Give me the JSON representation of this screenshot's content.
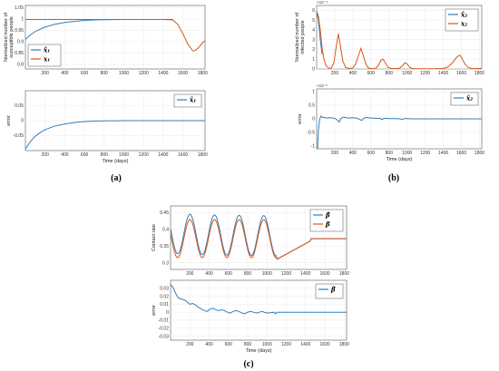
{
  "figure": {
    "panel_labels": [
      "(a)",
      "(b)",
      "(c)"
    ]
  },
  "colors": {
    "estimate": "#2f7fbf",
    "actual": "#d9541a",
    "grid": "#e6e6e6",
    "axis": "#333333"
  },
  "chart_data": [
    {
      "id": "a_top",
      "type": "line",
      "xlabel": "",
      "ylabel": "Normalized number of susceptible people",
      "xlim": [
        0,
        1825
      ],
      "ylim": [
        0.78,
        1.06
      ],
      "xticks": [
        200,
        400,
        600,
        800,
        1000,
        1200,
        1400,
        1600,
        1800
      ],
      "yticks": [
        0.8,
        0.85,
        0.9,
        0.95,
        1,
        1.05
      ],
      "ytick_labels": [
        "0.8",
        "0.85",
        "0.9",
        "0.95",
        "1",
        "1.05"
      ],
      "legend": [
        "x̂₁",
        "x₁"
      ],
      "legend_pos": "bottom-left",
      "series": [
        {
          "name": "x̂₁",
          "color": "#2f7fbf",
          "x": [
            0,
            50,
            100,
            150,
            200,
            300,
            400,
            500,
            600,
            700,
            800,
            1000,
            1200,
            1400,
            1500
          ],
          "y": [
            0.91,
            0.93,
            0.945,
            0.955,
            0.965,
            0.977,
            0.985,
            0.99,
            0.994,
            0.996,
            0.997,
            0.998,
            0.998,
            0.998,
            0.998
          ]
        },
        {
          "name": "x₁",
          "color": "#d9541a",
          "x": [
            0,
            200,
            400,
            600,
            800,
            1000,
            1200,
            1400,
            1500,
            1550,
            1600,
            1650,
            1700,
            1720,
            1750,
            1800,
            1825
          ],
          "y": [
            0.998,
            0.998,
            0.998,
            0.998,
            0.998,
            0.998,
            0.998,
            0.998,
            0.996,
            0.975,
            0.935,
            0.89,
            0.86,
            0.86,
            0.87,
            0.895,
            0.905
          ]
        }
      ]
    },
    {
      "id": "a_bottom",
      "type": "line",
      "xlabel": "Time (days)",
      "ylabel": "error",
      "xlim": [
        0,
        1825
      ],
      "ylim": [
        -0.1,
        0.1
      ],
      "xticks": [
        200,
        400,
        600,
        800,
        1000,
        1200,
        1400,
        1600,
        1800
      ],
      "yticks": [
        -0.05,
        0,
        0.05
      ],
      "ytick_labels": [
        "-0.05",
        "0",
        "0.05"
      ],
      "legend": [
        "x̃₁"
      ],
      "legend_pos": "top-right",
      "series": [
        {
          "name": "x̃₁",
          "color": "#2f7fbf",
          "x": [
            0,
            50,
            100,
            150,
            200,
            300,
            400,
            500,
            600,
            700,
            800,
            1000,
            1200,
            1400,
            1600,
            1825
          ],
          "y": [
            -0.095,
            -0.07,
            -0.052,
            -0.04,
            -0.03,
            -0.018,
            -0.011,
            -0.006,
            -0.003,
            -0.0015,
            -0.0008,
            0,
            0,
            0,
            0,
            0
          ]
        }
      ]
    },
    {
      "id": "b_top",
      "type": "line",
      "xlabel": "",
      "ylabel": "Normalized number of infected people",
      "xlim": [
        0,
        1825
      ],
      "ylim": [
        0,
        6.5
      ],
      "exponent": "×10⁻⁴",
      "xticks": [
        200,
        400,
        600,
        800,
        1000,
        1200,
        1400,
        1600,
        1800
      ],
      "yticks": [
        0,
        1,
        2,
        3,
        4,
        5,
        6
      ],
      "ytick_labels": [
        "0",
        "1",
        "2",
        "3",
        "4",
        "5",
        "6"
      ],
      "legend": [
        "x̂₂",
        "x₂"
      ],
      "legend_pos": "top-right",
      "series": [
        {
          "name": "x̂₂",
          "color": "#2f7fbf",
          "x": [
            0,
            20,
            40,
            60
          ],
          "y": [
            5.8,
            5.0,
            3.0,
            1.5
          ]
        },
        {
          "name": "x₂",
          "color": "#d9541a",
          "x": [
            0,
            20,
            40,
            60,
            80,
            100,
            130,
            160,
            190,
            215,
            240,
            265,
            290,
            320,
            360,
            400,
            430,
            460,
            490,
            515,
            540,
            570,
            610,
            650,
            680,
            710,
            735,
            760,
            790,
            830,
            880,
            920,
            950,
            980,
            1005,
            1030,
            1060,
            1100,
            1200,
            1300,
            1400,
            1450,
            1500,
            1530,
            1560,
            1585,
            1610,
            1640,
            1680,
            1720,
            1760,
            1800,
            1825
          ],
          "y": [
            5.9,
            5.4,
            4.0,
            2.2,
            1.0,
            0.4,
            0.1,
            0.05,
            0.6,
            2.2,
            3.6,
            2.2,
            0.8,
            0.15,
            0.05,
            0.1,
            0.5,
            1.3,
            2.1,
            1.4,
            0.6,
            0.1,
            0.03,
            0.05,
            0.3,
            0.9,
            1.0,
            0.6,
            0.15,
            0.03,
            0.03,
            0.08,
            0.35,
            0.65,
            0.45,
            0.15,
            0.03,
            0.02,
            0.02,
            0.02,
            0.05,
            0.2,
            0.6,
            1.0,
            1.3,
            1.4,
            1.0,
            0.5,
            0.12,
            0.05,
            0.03,
            0.05,
            0.05
          ]
        }
      ]
    },
    {
      "id": "b_bottom",
      "type": "line",
      "xlabel": "Time (days)",
      "ylabel": "error",
      "xlim": [
        0,
        1825
      ],
      "ylim": [
        -1.1,
        1.1
      ],
      "exponent": "×10⁻⁵",
      "xticks": [
        200,
        400,
        600,
        800,
        1000,
        1200,
        1400,
        1600,
        1800
      ],
      "yticks": [
        -1,
        -0.5,
        0,
        0.5,
        1
      ],
      "ytick_labels": [
        "-1",
        "-0.5",
        "0",
        "0.5",
        "1"
      ],
      "legend": [
        "x̃₂"
      ],
      "legend_pos": "top-right",
      "series": [
        {
          "name": "x̃₂",
          "color": "#2f7fbf",
          "x": [
            0,
            10,
            20,
            30,
            40,
            50,
            60,
            80,
            100,
            150,
            200,
            230,
            250,
            270,
            300,
            350,
            400,
            450,
            480,
            500,
            520,
            550,
            600,
            650,
            700,
            720,
            740,
            760,
            800,
            900,
            950,
            970,
            1000,
            1050,
            1100,
            1200,
            1400,
            1600,
            1825
          ],
          "y": [
            -1.1,
            -1.1,
            -0.4,
            -0.1,
            0.05,
            0.1,
            0.05,
            0.06,
            0.03,
            0.04,
            0.02,
            -0.05,
            -0.12,
            0.02,
            0.06,
            0.03,
            0.04,
            0.02,
            -0.03,
            -0.06,
            0.02,
            0.05,
            0.03,
            0.02,
            0.02,
            -0.03,
            0.01,
            0.02,
            0.01,
            0.01,
            -0.02,
            0.01,
            0.01,
            0,
            0,
            0,
            0,
            0,
            0
          ]
        }
      ]
    },
    {
      "id": "c_top",
      "type": "line",
      "xlabel": "",
      "ylabel": "Contact rate",
      "xlim": [
        0,
        1825
      ],
      "ylim": [
        0.28,
        0.47
      ],
      "xticks": [
        200,
        400,
        600,
        800,
        1000,
        1200,
        1400,
        1600,
        1800
      ],
      "yticks": [
        0.3,
        0.35,
        0.4,
        0.45
      ],
      "ytick_labels": [
        "0.3",
        "0.35",
        "0.4",
        "0.45"
      ],
      "legend": [
        "β̂",
        "β"
      ],
      "legend_pos": "top-right",
      "series": [
        {
          "name": "β̂",
          "color": "#2f7fbf",
          "kind": "sine_est"
        },
        {
          "name": "β",
          "color": "#d9541a",
          "kind": "sine_true"
        }
      ]
    },
    {
      "id": "c_bottom",
      "type": "line",
      "xlabel": "Time (days)",
      "ylabel": "error",
      "xlim": [
        0,
        1825
      ],
      "ylim": [
        -0.035,
        0.04
      ],
      "xticks": [
        200,
        400,
        600,
        800,
        1000,
        1200,
        1400,
        1600,
        1800
      ],
      "yticks": [
        -0.03,
        -0.02,
        -0.01,
        0,
        0.01,
        0.02,
        0.03
      ],
      "ytick_labels": [
        "-0.03",
        "-0.02",
        "-0.01",
        "0",
        "0.01",
        "0.02",
        "0.03"
      ],
      "legend": [
        "β̃"
      ],
      "legend_pos": "top-right",
      "series": [
        {
          "name": "β̃",
          "color": "#2f7fbf",
          "x": [
            0,
            30,
            60,
            80,
            100,
            130,
            150,
            180,
            200,
            230,
            260,
            290,
            320,
            350,
            380,
            410,
            440,
            470,
            500,
            530,
            560,
            590,
            620,
            650,
            680,
            710,
            740,
            770,
            800,
            830,
            860,
            890,
            920,
            950,
            980,
            1010,
            1040,
            1070,
            1090,
            1100,
            1150,
            1200,
            1300,
            1400,
            1500,
            1600,
            1700,
            1800,
            1825
          ],
          "y": [
            0.035,
            0.03,
            0.022,
            0.018,
            0.017,
            0.016,
            0.015,
            0.012,
            0.01,
            0.011,
            0.009,
            0.006,
            0.004,
            0.002,
            0.001,
            0.004,
            0.005,
            0.003,
            0.002,
            0.003,
            0.002,
            0.0,
            -0.001,
            0.001,
            0.002,
            0.001,
            -0.001,
            -0.002,
            0.0,
            0.001,
            0.0,
            -0.001,
            0.0,
            0.001,
            -0.0005,
            -0.001,
            -0.0005,
            0.0,
            -0.002,
            0.0,
            0.0,
            0.0,
            0.0,
            0.0,
            0.0,
            0.0,
            0.0,
            0.0,
            0.0
          ]
        }
      ]
    }
  ]
}
